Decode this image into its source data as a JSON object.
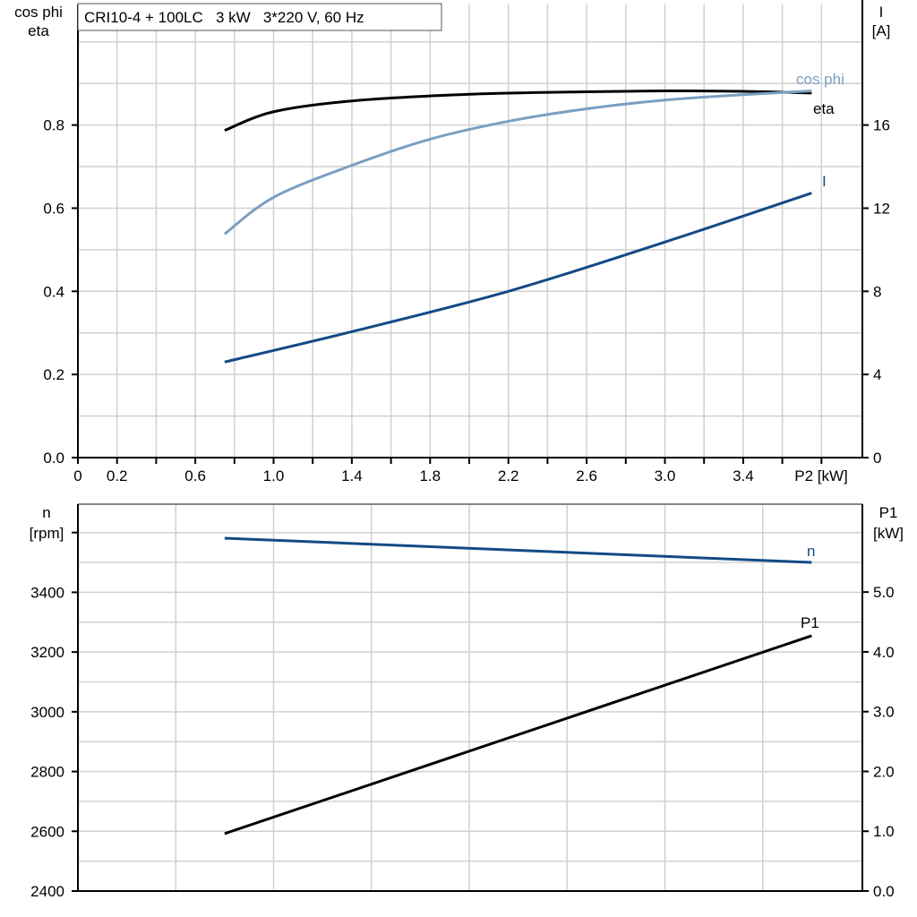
{
  "chart_data": [
    {
      "type": "line",
      "title": "CRI10-4 + 100LC   3 kW   3*220 V, 60 Hz",
      "xlabel": "P2 [kW]",
      "ylabel_left": [
        "cos phi",
        "eta"
      ],
      "ylabel_right": [
        "I",
        "[A]"
      ],
      "xlim": [
        0,
        4.0
      ],
      "ylim_left": [
        0,
        1.09
      ],
      "ylim_right": [
        0,
        21.8
      ],
      "x_tick_labels": [
        "0",
        "0.2",
        "0.6",
        "1.0",
        "1.4",
        "1.8",
        "2.2",
        "2.6",
        "3.0",
        "3.4"
      ],
      "x_tick_values": [
        0,
        0.2,
        0.6,
        1.0,
        1.4,
        1.8,
        2.2,
        2.6,
        3.0,
        3.4
      ],
      "y_left_tick_labels": [
        "0.0",
        "0.2",
        "0.4",
        "0.6",
        "0.8"
      ],
      "y_right_tick_labels": [
        "0",
        "4",
        "8",
        "12",
        "16"
      ],
      "grid": true,
      "series": [
        {
          "name": "eta",
          "axis": "left",
          "color": "#000000",
          "x": [
            0.75,
            1.0,
            1.4,
            2.0,
            2.6,
            3.0,
            3.4,
            3.75
          ],
          "y": [
            0.787,
            0.832,
            0.858,
            0.874,
            0.88,
            0.882,
            0.881,
            0.877
          ]
        },
        {
          "name": "cos phi",
          "axis": "left",
          "color": "#7a9fc2",
          "x": [
            0.75,
            1.0,
            1.4,
            1.8,
            2.2,
            2.6,
            3.0,
            3.4,
            3.75
          ],
          "y": [
            0.538,
            0.626,
            0.703,
            0.766,
            0.809,
            0.839,
            0.86,
            0.873,
            0.882
          ]
        },
        {
          "name": "I",
          "axis": "right",
          "color": "#124a85",
          "x": [
            0.75,
            1.4,
            2.2,
            3.0,
            3.75
          ],
          "y": [
            4.6,
            6.06,
            8.0,
            10.37,
            12.73
          ]
        }
      ]
    },
    {
      "type": "line",
      "xlim": [
        0,
        4.0
      ],
      "ylabel_left": [
        "n",
        "[rpm]"
      ],
      "ylabel_right": [
        "P1",
        "[kW]"
      ],
      "ylim_left": [
        2400,
        3695
      ],
      "ylim_right": [
        0,
        6.47
      ],
      "y_left_tick_labels": [
        "2400",
        "2600",
        "2800",
        "3000",
        "3200",
        "3400"
      ],
      "y_right_tick_labels": [
        "0.0",
        "1.0",
        "2.0",
        "3.0",
        "4.0",
        "5.0"
      ],
      "grid": true,
      "series": [
        {
          "name": "n",
          "axis": "left",
          "color": "#124a85",
          "x": [
            0.75,
            3.75
          ],
          "y": [
            3581,
            3500
          ]
        },
        {
          "name": "P1",
          "axis": "right",
          "color": "#000000",
          "x": [
            0.75,
            3.75
          ],
          "y": [
            0.96,
            4.27
          ]
        }
      ]
    }
  ]
}
